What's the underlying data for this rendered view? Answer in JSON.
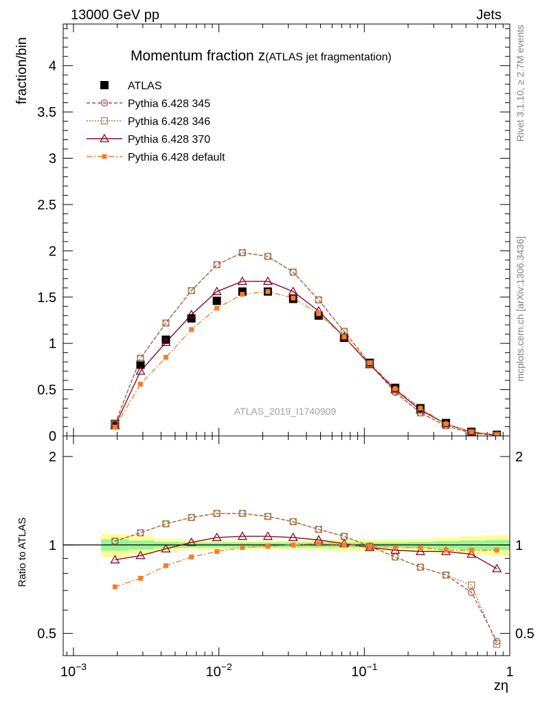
{
  "header": {
    "left": "13000 GeV pp",
    "right": "Jets"
  },
  "side_labels": {
    "rivet": "Rivet 3.1.10, ≥ 2.7M events",
    "mcplots": "mcplots.cern.ch [arXiv:1306.3436]"
  },
  "chart_data": [
    {
      "id": "main",
      "type": "line",
      "title_main": "Momentum fraction z",
      "title_sub": "(ATLAS jet fragmentation)",
      "ylabel": "fraction/bin",
      "xscale": "log",
      "xlim": [
        0.00085,
        1.0
      ],
      "ylim": [
        0,
        4.45
      ],
      "yticks": [
        0,
        0.5,
        1,
        1.5,
        2,
        2.5,
        3,
        3.5,
        4
      ],
      "ytick_labels": [
        "0",
        "0.5",
        "1",
        "1.5",
        "2",
        "2.5",
        "3",
        "3.5",
        "4"
      ],
      "watermark": "ATLAS_2019_I1740909",
      "x": [
        0.00193,
        0.00289,
        0.00432,
        0.00647,
        0.00968,
        0.0145,
        0.0217,
        0.0324,
        0.0485,
        0.0726,
        0.109,
        0.163,
        0.243,
        0.364,
        0.545,
        0.815
      ],
      "series": [
        {
          "name": "ATLAS",
          "style": "data",
          "color": "#000000",
          "values": [
            0.13,
            0.77,
            1.04,
            1.27,
            1.46,
            1.56,
            1.56,
            1.48,
            1.3,
            1.06,
            0.79,
            0.52,
            0.3,
            0.14,
            0.045,
            0.012
          ]
        },
        {
          "name": "Pythia 6.428 345",
          "style": "circle",
          "color": "#b5474b",
          "values": [
            0.13,
            0.84,
            1.22,
            1.57,
            1.85,
            1.98,
            1.94,
            1.77,
            1.47,
            1.13,
            0.78,
            0.47,
            0.25,
            0.11,
            0.03,
            0.006
          ]
        },
        {
          "name": "Pythia 6.428 346",
          "style": "square",
          "color": "#a08040",
          "values": [
            0.13,
            0.84,
            1.22,
            1.57,
            1.85,
            1.98,
            1.94,
            1.77,
            1.47,
            1.13,
            0.78,
            0.48,
            0.25,
            0.11,
            0.033,
            0.006
          ]
        },
        {
          "name": "Pythia 6.428 370",
          "style": "triangle",
          "color": "#8b0a28",
          "values": [
            0.11,
            0.7,
            1.01,
            1.31,
            1.56,
            1.67,
            1.67,
            1.56,
            1.35,
            1.07,
            0.77,
            0.5,
            0.28,
            0.13,
            0.042,
            0.01
          ]
        },
        {
          "name": "Pythia 6.428 default",
          "style": "filled-square",
          "color": "#f57d2d",
          "values": [
            0.095,
            0.56,
            0.85,
            1.15,
            1.38,
            1.53,
            1.56,
            1.49,
            1.32,
            1.07,
            0.79,
            0.51,
            0.3,
            0.13,
            0.044,
            0.012
          ]
        }
      ]
    },
    {
      "id": "ratio",
      "type": "line",
      "ylabel": "Ratio to ATLAS",
      "xlabel": "zη",
      "xscale": "log",
      "xlim": [
        0.00085,
        1.0
      ],
      "ylim": [
        0.42,
        2.35
      ],
      "yscale": "log",
      "yticks": [
        0.5,
        1,
        2
      ],
      "ytick_labels": [
        "0.5",
        "1",
        "2"
      ],
      "xticks": [
        0.001,
        0.01,
        0.1,
        1
      ],
      "xtick_labels": [
        [
          "10",
          "−3"
        ],
        [
          "10",
          "−2"
        ],
        [
          "10",
          "−1"
        ],
        [
          "1",
          ""
        ]
      ],
      "band_edges": [
        0.00155,
        0.00241,
        0.00359,
        0.00538,
        0.00806,
        0.0121,
        0.018,
        0.0269,
        0.0403,
        0.0602,
        0.0902,
        0.134,
        0.2,
        0.3,
        0.45,
        0.67,
        1.0
      ],
      "band_stat": [
        0.045,
        0.035,
        0.025,
        0.02,
        0.02,
        0.02,
        0.02,
        0.02,
        0.02,
        0.02,
        0.02,
        0.02,
        0.025,
        0.03,
        0.035,
        0.04
      ],
      "band_total": [
        0.09,
        0.07,
        0.05,
        0.04,
        0.035,
        0.035,
        0.035,
        0.035,
        0.04,
        0.045,
        0.045,
        0.045,
        0.05,
        0.06,
        0.07,
        0.08
      ],
      "colors": {
        "band_total": "#fdfd98",
        "band_stat": "#98f598",
        "reference": "#000000"
      },
      "x": [
        0.00193,
        0.00289,
        0.00432,
        0.00647,
        0.00968,
        0.0145,
        0.0217,
        0.0324,
        0.0485,
        0.0726,
        0.109,
        0.163,
        0.243,
        0.364,
        0.545,
        0.815
      ],
      "series": [
        {
          "name": "Pythia 6.428 345",
          "style": "circle",
          "color": "#b5474b",
          "values": [
            1.03,
            1.1,
            1.18,
            1.24,
            1.28,
            1.28,
            1.25,
            1.2,
            1.13,
            1.07,
            0.99,
            0.91,
            0.84,
            0.79,
            0.69,
            0.47
          ]
        },
        {
          "name": "Pythia 6.428 346",
          "style": "square",
          "color": "#a08040",
          "values": [
            1.03,
            1.1,
            1.18,
            1.24,
            1.28,
            1.28,
            1.25,
            1.2,
            1.13,
            1.07,
            0.99,
            0.91,
            0.84,
            0.79,
            0.73,
            0.46
          ]
        },
        {
          "name": "Pythia 6.428 370",
          "style": "triangle",
          "color": "#8b0a28",
          "values": [
            0.89,
            0.92,
            0.97,
            1.02,
            1.06,
            1.07,
            1.07,
            1.06,
            1.04,
            1.01,
            0.98,
            0.96,
            0.95,
            0.95,
            0.93,
            0.83
          ]
        },
        {
          "name": "Pythia 6.428 default",
          "style": "filled-square",
          "color": "#f57d2d",
          "values": [
            0.72,
            0.77,
            0.85,
            0.91,
            0.95,
            0.98,
            0.99,
            1.0,
            1.01,
            1.0,
            0.99,
            0.98,
            0.98,
            0.96,
            0.96,
            0.96
          ]
        }
      ]
    }
  ]
}
